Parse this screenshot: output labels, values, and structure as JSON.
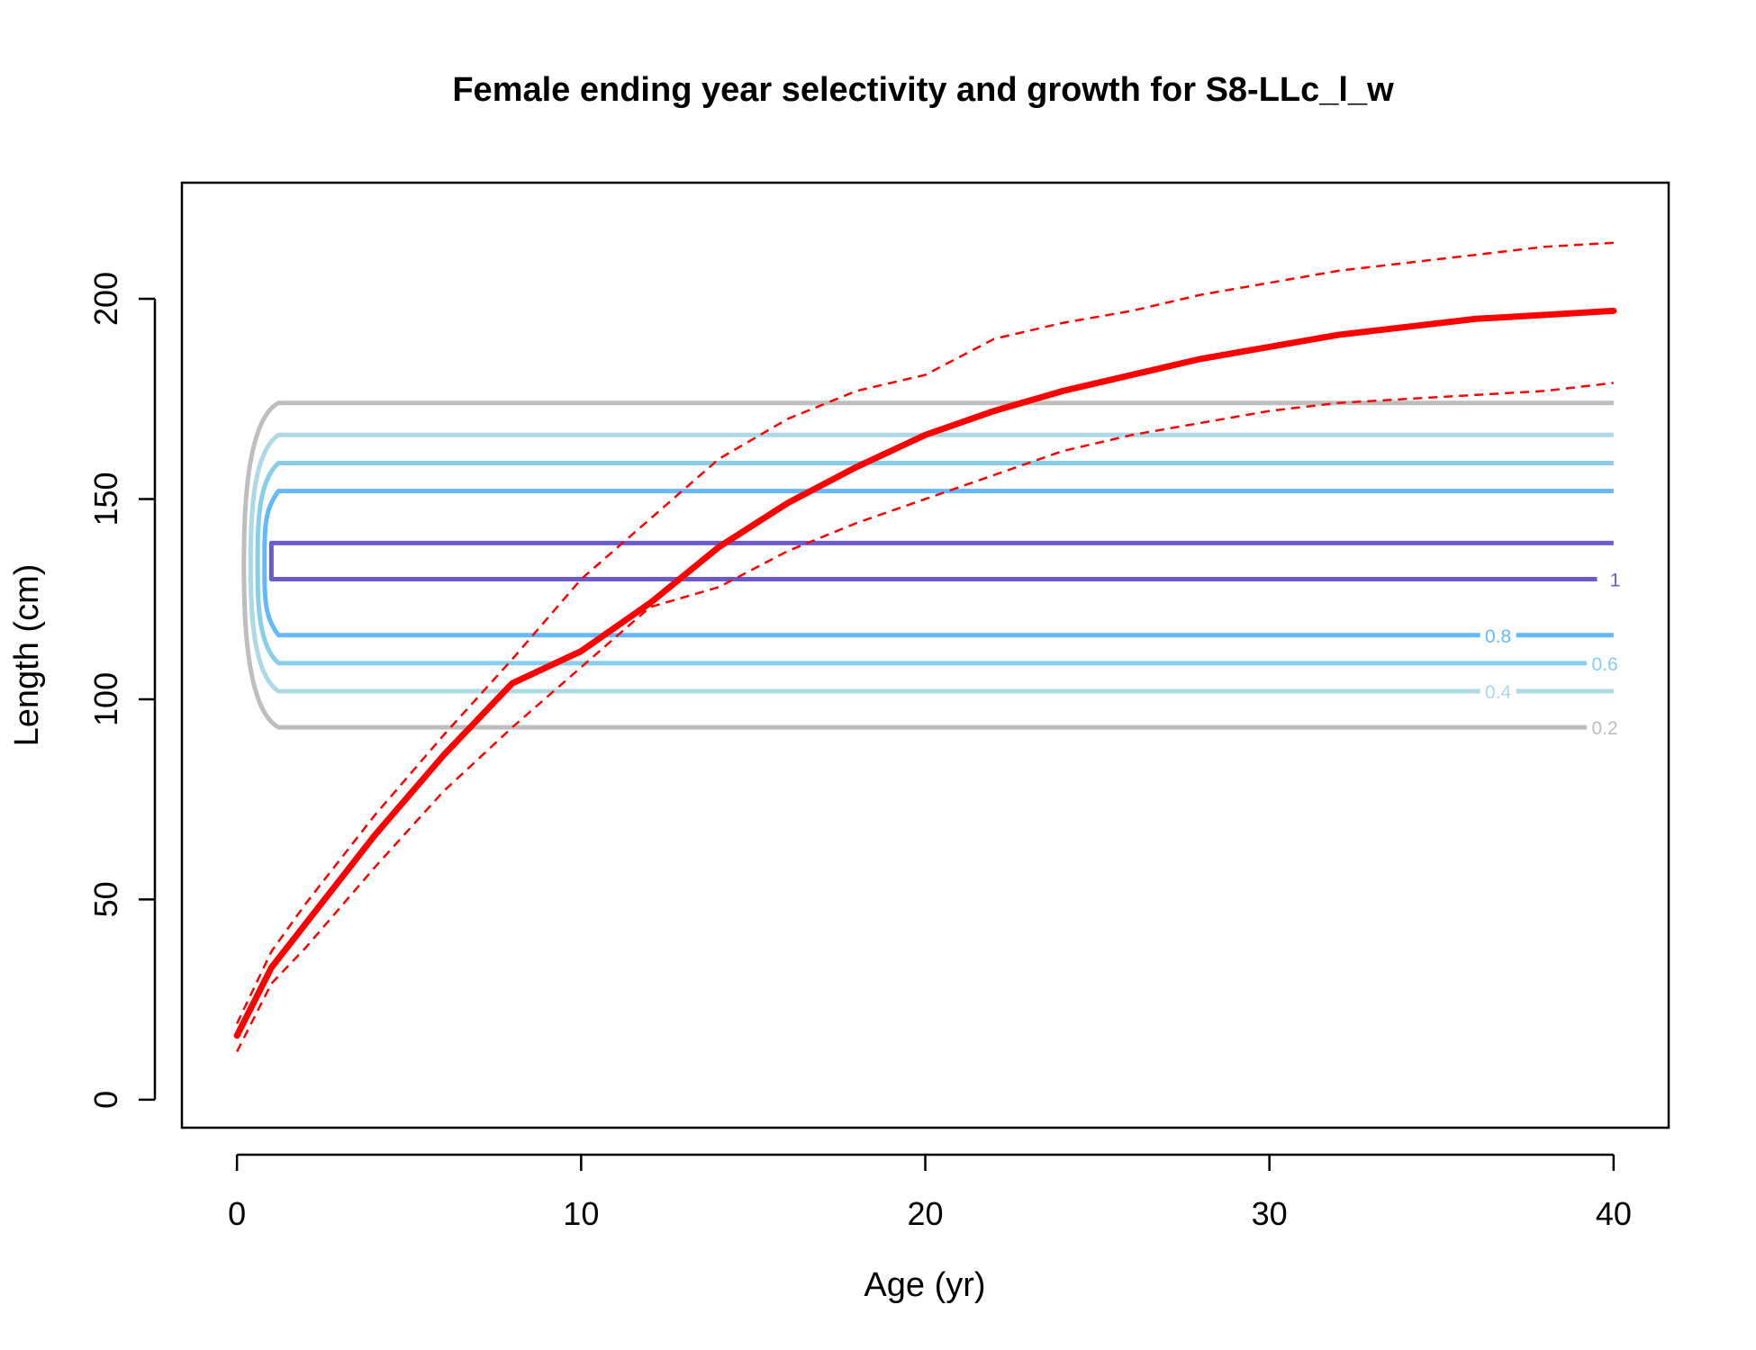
{
  "chart_data": {
    "type": "line",
    "title": "Female ending year selectivity and growth for S8-LLc_l_w",
    "xlabel": "Age (yr)",
    "ylabel": "Length (cm)",
    "xlim": [
      -1.6,
      41.6
    ],
    "ylim": [
      -7,
      229
    ],
    "xticks": [
      0,
      10,
      20,
      30,
      40
    ],
    "yticks": [
      0,
      50,
      100,
      150,
      200
    ],
    "grid": false,
    "legend": "none",
    "growth": {
      "color": "#ff0000",
      "mean": {
        "x": [
          0,
          1,
          2,
          4,
          6,
          8,
          10,
          12,
          14,
          16,
          18,
          20,
          22,
          24,
          26,
          28,
          30,
          32,
          34,
          36,
          38,
          40
        ],
        "y": [
          16,
          33,
          44,
          66,
          86,
          104,
          112,
          124,
          138,
          149,
          158,
          166,
          172,
          177,
          181,
          185,
          188,
          191,
          193,
          195,
          196,
          197
        ]
      },
      "upper": {
        "x": [
          0,
          1,
          2,
          4,
          6,
          8,
          10,
          12,
          14,
          16,
          18,
          20,
          22,
          24,
          26,
          28,
          30,
          32,
          34,
          36,
          38,
          40
        ],
        "y": [
          19,
          37,
          49,
          71,
          91,
          110,
          130,
          145,
          160,
          170,
          177,
          181,
          190,
          194,
          197,
          201,
          204,
          207,
          209,
          211,
          213,
          214
        ]
      },
      "lower": {
        "x": [
          0,
          1,
          2,
          4,
          6,
          8,
          10,
          12,
          14,
          16,
          18,
          20,
          22,
          24,
          26,
          28,
          30,
          32,
          34,
          36,
          38,
          40
        ],
        "y": [
          12,
          29,
          38,
          58,
          77,
          93,
          108,
          123,
          128,
          137,
          144,
          150,
          156,
          162,
          166,
          169,
          172,
          174,
          175,
          176,
          177,
          179
        ]
      }
    },
    "selectivity_contours": {
      "x_left": 0.2,
      "x_inner": 1,
      "x_right": 40,
      "levels": [
        {
          "level": "0.2",
          "color": "#bebebe",
          "low": 93,
          "high": 174
        },
        {
          "level": "0.4",
          "color": "#add8e6",
          "low": 102,
          "high": 166
        },
        {
          "level": "0.6",
          "color": "#87ceeb",
          "low": 109,
          "high": 159
        },
        {
          "level": "0.8",
          "color": "#63b8ff",
          "low": 116,
          "high": 152
        },
        {
          "level": "1",
          "color": "#6a5acd",
          "low": 130,
          "high": 139
        }
      ]
    }
  }
}
